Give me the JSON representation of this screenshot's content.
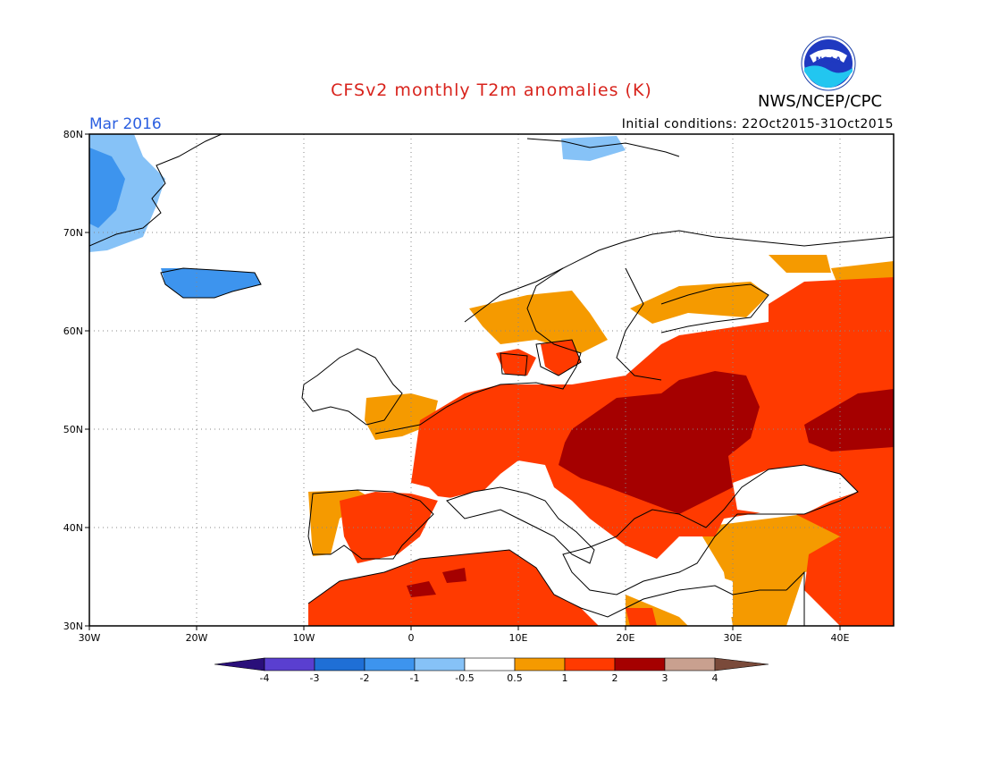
{
  "title": "CFSv2 monthly T2m anomalies (K)",
  "organization": "NWS/NCEP/CPC",
  "logo_text": "NOAA",
  "valid_month": "Mar 2016",
  "initial_conditions": "Initial conditions: 22Oct2015-31Oct2015",
  "lat_labels": [
    "80N",
    "70N",
    "60N",
    "50N",
    "40N",
    "30N"
  ],
  "lon_labels": [
    "30W",
    "20W",
    "10W",
    "0",
    "10E",
    "20E",
    "30E",
    "40E"
  ],
  "colorbar": {
    "labels": [
      "-4",
      "-3",
      "-2",
      "-1",
      "-0.5",
      "0.5",
      "1",
      "2",
      "3",
      "4"
    ],
    "colors": [
      "#2a0f7a",
      "#5a3fd0",
      "#1f6fd6",
      "#3d94ee",
      "#86c2f7",
      "#ffffff",
      "#f59a00",
      "#ff3a00",
      "#a50000",
      "#c9a08f",
      "#7a4a3a"
    ]
  },
  "anomaly_colors": {
    "cold_mid": "#3d94ee",
    "cold_light": "#86c2f7",
    "warm_light": "#f59a00",
    "warm_mid": "#ff3a00",
    "warm_strong": "#a50000"
  }
}
